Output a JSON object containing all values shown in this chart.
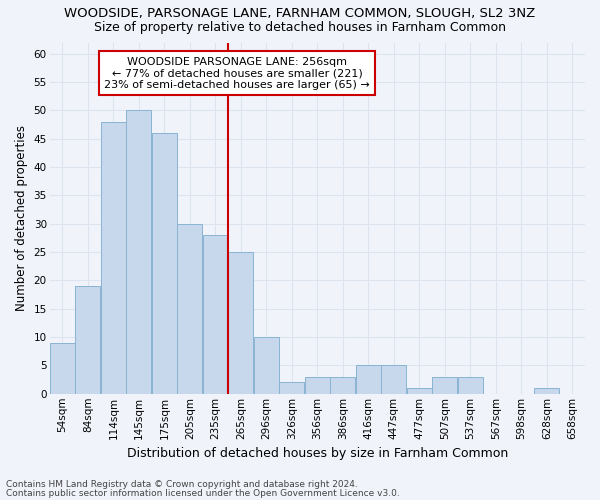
{
  "title1": "WOODSIDE, PARSONAGE LANE, FARNHAM COMMON, SLOUGH, SL2 3NZ",
  "title2": "Size of property relative to detached houses in Farnham Common",
  "xlabel": "Distribution of detached houses by size in Farnham Common",
  "ylabel": "Number of detached properties",
  "categories": [
    "54sqm",
    "84sqm",
    "114sqm",
    "145sqm",
    "175sqm",
    "205sqm",
    "235sqm",
    "265sqm",
    "296sqm",
    "326sqm",
    "356sqm",
    "386sqm",
    "416sqm",
    "447sqm",
    "477sqm",
    "507sqm",
    "537sqm",
    "567sqm",
    "598sqm",
    "628sqm",
    "658sqm"
  ],
  "values": [
    9,
    19,
    48,
    50,
    46,
    30,
    28,
    25,
    10,
    2,
    3,
    3,
    5,
    5,
    1,
    3,
    3,
    0,
    0,
    1,
    0
  ],
  "bar_color": "#c8d8ec",
  "bar_edge_color": "#8ab4d4",
  "annotation_text": "WOODSIDE PARSONAGE LANE: 256sqm\n← 77% of detached houses are smaller (221)\n23% of semi-detached houses are larger (65) →",
  "annotation_box_color": "#ffffff",
  "annotation_box_edge_color": "#cc0000",
  "vline_color": "#cc0000",
  "ylim": [
    0,
    62
  ],
  "yticks": [
    0,
    5,
    10,
    15,
    20,
    25,
    30,
    35,
    40,
    45,
    50,
    55,
    60
  ],
  "footnote1": "Contains HM Land Registry data © Crown copyright and database right 2024.",
  "footnote2": "Contains public sector information licensed under the Open Government Licence v3.0.",
  "background_color": "#f0f4fa",
  "grid_color": "#dde4f0",
  "title1_fontsize": 9.5,
  "title2_fontsize": 9,
  "xlabel_fontsize": 9,
  "ylabel_fontsize": 8.5,
  "tick_fontsize": 7.5,
  "annotation_fontsize": 8,
  "footnote_fontsize": 6.5
}
